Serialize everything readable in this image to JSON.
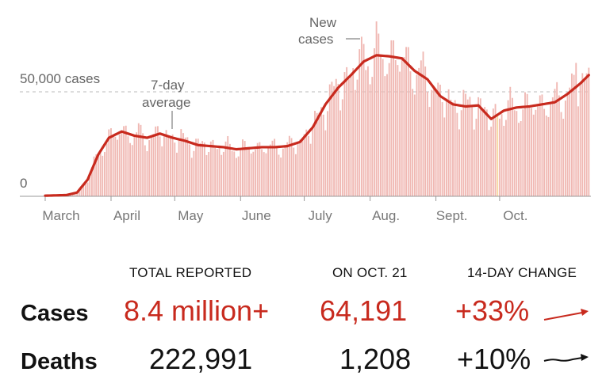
{
  "chart_data": {
    "type": "bar",
    "title": "",
    "series": [
      {
        "name": "New cases",
        "kind": "daily-bars"
      },
      {
        "name": "7-day average",
        "kind": "line",
        "points": [
          [
            0,
            300
          ],
          [
            10,
            600
          ],
          [
            15,
            1800
          ],
          [
            20,
            8000
          ],
          [
            25,
            20000
          ],
          [
            30,
            28000
          ],
          [
            36,
            31000
          ],
          [
            42,
            29000
          ],
          [
            48,
            28000
          ],
          [
            54,
            30000
          ],
          [
            60,
            28000
          ],
          [
            66,
            26500
          ],
          [
            72,
            24500
          ],
          [
            78,
            24000
          ],
          [
            84,
            23500
          ],
          [
            90,
            22500
          ],
          [
            96,
            23000
          ],
          [
            102,
            23500
          ],
          [
            108,
            23500
          ],
          [
            114,
            24000
          ],
          [
            120,
            26000
          ],
          [
            126,
            33000
          ],
          [
            132,
            44000
          ],
          [
            138,
            52000
          ],
          [
            144,
            58000
          ],
          [
            150,
            64500
          ],
          [
            156,
            67500
          ],
          [
            162,
            67000
          ],
          [
            168,
            66000
          ],
          [
            174,
            60000
          ],
          [
            180,
            56000
          ],
          [
            186,
            48000
          ],
          [
            192,
            44000
          ],
          [
            198,
            43000
          ],
          [
            204,
            43500
          ],
          [
            210,
            37000
          ],
          [
            216,
            41000
          ],
          [
            222,
            42500
          ],
          [
            228,
            43000
          ],
          [
            234,
            44000
          ],
          [
            240,
            45000
          ],
          [
            246,
            49000
          ],
          [
            252,
            54000
          ],
          [
            256,
            58000
          ]
        ]
      }
    ],
    "x_ticks": [
      "March",
      "April",
      "May",
      "June",
      "July",
      "Aug.",
      "Sept.",
      "Oct."
    ],
    "y_ticks": [
      {
        "value": 0,
        "label": "0"
      },
      {
        "value": 50000,
        "label": "50,000 cases"
      }
    ],
    "ylim": [
      0,
      80000
    ],
    "annotations": {
      "new_cases": [
        "New",
        "cases"
      ],
      "avg": [
        "7-day",
        "average"
      ]
    }
  },
  "colors": {
    "red": "#c82a1e",
    "bar": "#f0b8b3",
    "highlight": "#f7d9a0",
    "grid": "#bbbbbb"
  },
  "table": {
    "headers": [
      "TOTAL REPORTED",
      "ON OCT. 21",
      "14-DAY CHANGE"
    ],
    "rows": [
      {
        "label": "Cases",
        "total": "8.4 million+",
        "day": "64,191",
        "change": "+33%"
      },
      {
        "label": "Deaths",
        "total": "222,991",
        "day": "1,208",
        "change": "+10%"
      }
    ]
  }
}
